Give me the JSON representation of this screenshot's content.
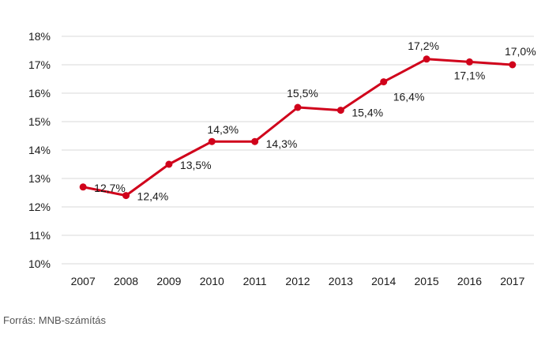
{
  "source_note": "Forrás: MNB-számítás",
  "chart_data": {
    "type": "line",
    "title": "",
    "xlabel": "",
    "ylabel": "",
    "categories": [
      "2007",
      "2008",
      "2009",
      "2010",
      "2011",
      "2012",
      "2013",
      "2014",
      "2015",
      "2016",
      "2017"
    ],
    "series": [
      {
        "values": [
          12.7,
          12.4,
          13.5,
          14.3,
          14.3,
          15.5,
          15.4,
          16.4,
          17.2,
          17.1,
          17.0
        ],
        "labels": [
          "12,7%",
          "12,4%",
          "13,5%",
          "14,3%",
          "14,3%",
          "15,5%",
          "15,4%",
          "16,4%",
          "17,2%",
          "17,1%",
          "17,0%"
        ],
        "color": "#d0021b"
      }
    ],
    "ylim": [
      10,
      18
    ],
    "yticks": [
      10,
      11,
      12,
      13,
      14,
      15,
      16,
      17,
      18
    ],
    "ytick_labels": [
      "10%",
      "11%",
      "12%",
      "13%",
      "14%",
      "15%",
      "16%",
      "17%",
      "18%"
    ],
    "grid": true,
    "gridline_color": "#d9d9d9",
    "legend": "none"
  }
}
